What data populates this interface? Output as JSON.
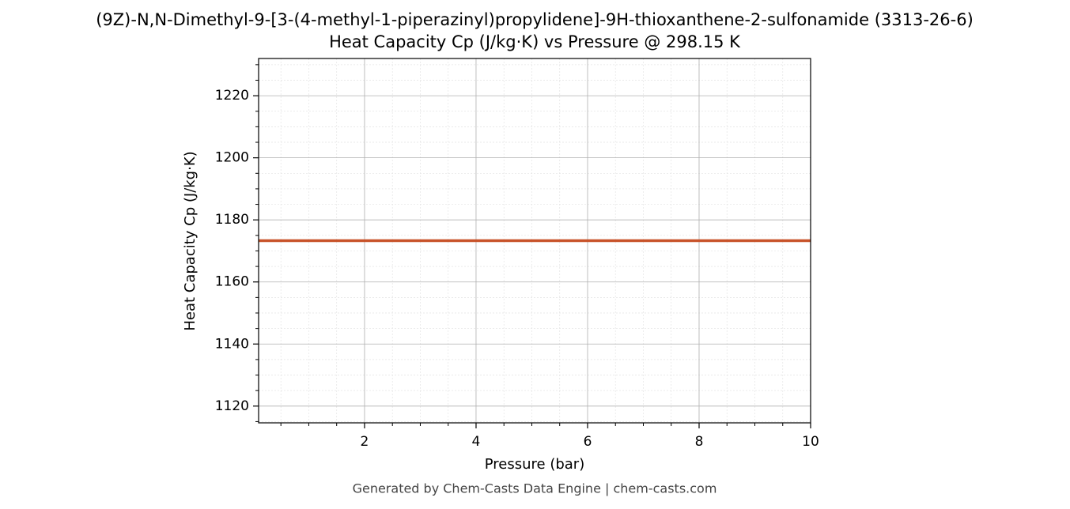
{
  "chart_data": {
    "type": "line",
    "title": "(9Z)-N,N-Dimethyl-9-[3-(4-methyl-1-piperazinyl)propylidene]-9H-thioxanthene-2-sulfonamide (3313-26-6)",
    "subtitle": "Heat Capacity Cp (J/kg·K) vs Pressure @ 298.15 K",
    "x_label": "Pressure (bar)",
    "y_label": "Heat Capacity Cp (J/kg·K)",
    "footer": "Generated by Chem-Casts Data Engine | chem-casts.com",
    "x": [
      0.1,
      10
    ],
    "series": [
      {
        "name": "Heat Capacity Cp",
        "color": "#c8532a",
        "values": [
          1173.3,
          1173.3
        ]
      }
    ],
    "xlim": [
      0.1,
      10
    ],
    "ylim": [
      1114.6,
      1232
    ],
    "xticks": [
      2,
      4,
      6,
      8,
      10
    ],
    "yticks": [
      1120,
      1140,
      1160,
      1180,
      1200,
      1220
    ],
    "xminorticks": [
      0.5,
      1,
      1.5,
      2.5,
      3,
      3.5,
      4.5,
      5,
      5.5,
      6.5,
      7,
      7.5,
      8.5,
      9,
      9.5
    ],
    "yminorticks": [
      1115,
      1125,
      1130,
      1135,
      1145,
      1150,
      1155,
      1165,
      1170,
      1175,
      1185,
      1190,
      1195,
      1205,
      1210,
      1215,
      1225,
      1230
    ],
    "grid": true,
    "minor_grid": true
  }
}
